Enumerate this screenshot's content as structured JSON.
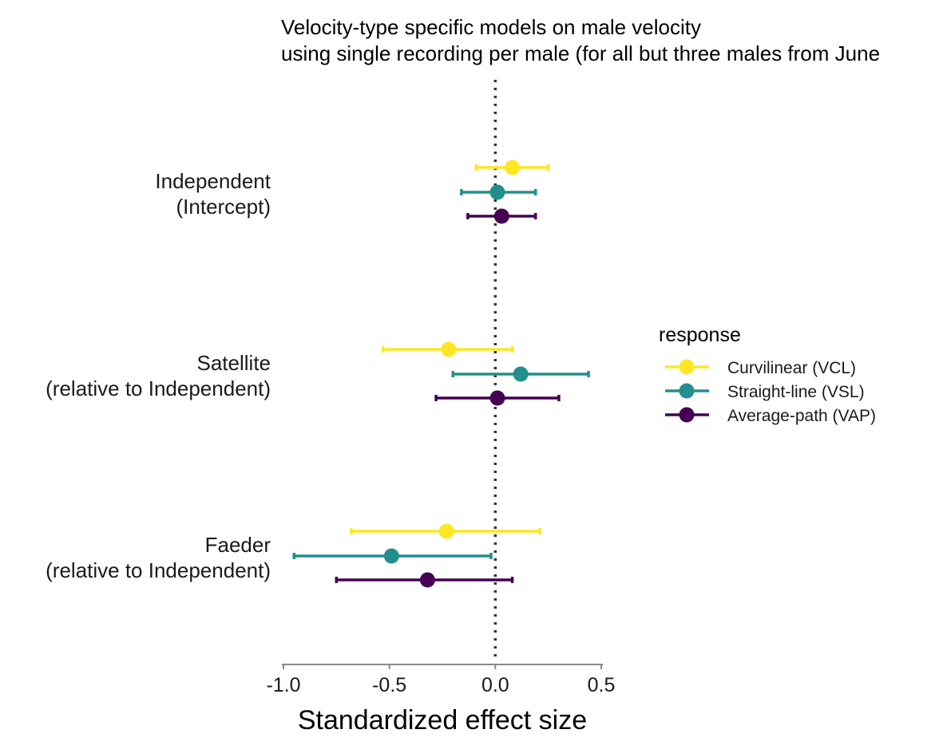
{
  "chart_data": {
    "type": "forest",
    "title_lines": [
      "Velocity-type specific models on male velocity",
      "using single recording per male (for all but three males from June"
    ],
    "xlabel": "Standardized effect size",
    "ylabel": "",
    "xlim": [
      -1.0,
      0.5
    ],
    "x_ticks": [
      -1.0,
      -0.5,
      0.0,
      0.5
    ],
    "x_tick_labels": [
      "-1.0",
      "-0.5",
      "0.0",
      "0.5"
    ],
    "reference_line": 0.0,
    "grid": false,
    "legend_title": "response",
    "legend_position": "right",
    "categories": [
      {
        "label_lines": [
          "Independent",
          "(Intercept)"
        ]
      },
      {
        "label_lines": [
          "Satellite",
          "(relative to Independent)"
        ]
      },
      {
        "label_lines": [
          "Faeder",
          "(relative to Independent)"
        ]
      }
    ],
    "series": [
      {
        "name": "Curvilinear (VCL)",
        "color": "#FDE725",
        "estimates": [
          0.08,
          -0.22,
          -0.23
        ],
        "lower": [
          -0.09,
          -0.53,
          -0.68
        ],
        "upper": [
          0.25,
          0.08,
          0.21
        ]
      },
      {
        "name": "Straight-line (VSL)",
        "color": "#21908C",
        "estimates": [
          0.01,
          0.12,
          -0.49
        ],
        "lower": [
          -0.16,
          -0.2,
          -0.95
        ],
        "upper": [
          0.19,
          0.44,
          -0.02
        ]
      },
      {
        "name": "Average-path (VAP)",
        "color": "#440154",
        "estimates": [
          0.03,
          0.01,
          -0.32
        ],
        "lower": [
          -0.13,
          -0.28,
          -0.75
        ],
        "upper": [
          0.19,
          0.3,
          0.08
        ]
      }
    ]
  }
}
